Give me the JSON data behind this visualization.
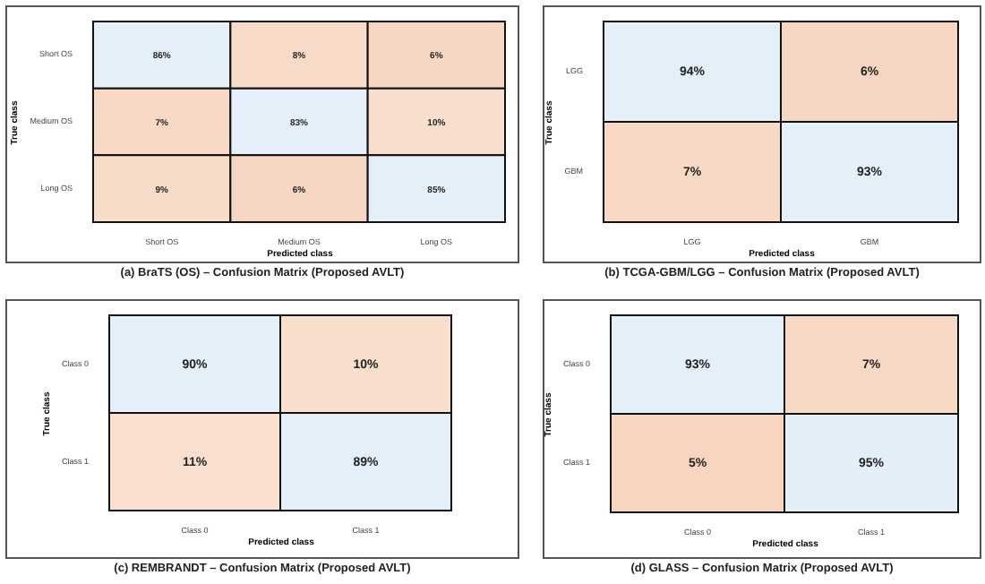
{
  "chart_data": [
    {
      "type": "heatmap",
      "title": "(a) BraTS (OS) – Confusion Matrix (Proposed AVLT)",
      "xlabel": "Predicted class",
      "ylabel": "True class",
      "categories": [
        "Short OS",
        "Medium OS",
        "Long OS"
      ],
      "y_categories": [
        "Short OS",
        "Medium OS",
        "Long OS"
      ],
      "cells": [
        [
          86,
          8,
          6
        ],
        [
          7,
          83,
          10
        ],
        [
          9,
          6,
          85
        ]
      ],
      "cell_labels": [
        [
          "86%",
          "8%",
          "6%"
        ],
        [
          "7%",
          "83%",
          "10%"
        ],
        [
          "9%",
          "6%",
          "85%"
        ]
      ]
    },
    {
      "type": "heatmap",
      "title": "(b) TCGA-GBM/LGG – Confusion Matrix (Proposed AVLT)",
      "xlabel": "Predicted class",
      "ylabel": "True class",
      "categories": [
        "LGG",
        "GBM"
      ],
      "y_categories": [
        "LGG",
        "GBM"
      ],
      "cells": [
        [
          94,
          6
        ],
        [
          7,
          93
        ]
      ],
      "cell_labels": [
        [
          "94%",
          "6%"
        ],
        [
          "7%",
          "93%"
        ]
      ]
    },
    {
      "type": "heatmap",
      "title": "(c) REMBRANDT – Confusion Matrix (Proposed AVLT)",
      "xlabel": "Predicted class",
      "ylabel": "True class",
      "categories": [
        "Class 0",
        "Class 1"
      ],
      "y_categories": [
        "Class 0",
        "Class 1"
      ],
      "cells": [
        [
          90,
          10
        ],
        [
          11,
          89
        ]
      ],
      "cell_labels": [
        [
          "90%",
          "10%"
        ],
        [
          "11%",
          "89%"
        ]
      ]
    },
    {
      "type": "heatmap",
      "title": "(d) GLASS – Confusion Matrix (Proposed AVLT)",
      "xlabel": "Predicted class",
      "ylabel": "True class",
      "categories": [
        "Class 0",
        "Class 1"
      ],
      "y_categories": [
        "Class 0",
        "Class 1"
      ],
      "cells": [
        [
          93,
          7
        ],
        [
          5,
          95
        ]
      ],
      "cell_labels": [
        [
          "93%",
          "7%"
        ],
        [
          "5%",
          "95%"
        ]
      ]
    }
  ]
}
